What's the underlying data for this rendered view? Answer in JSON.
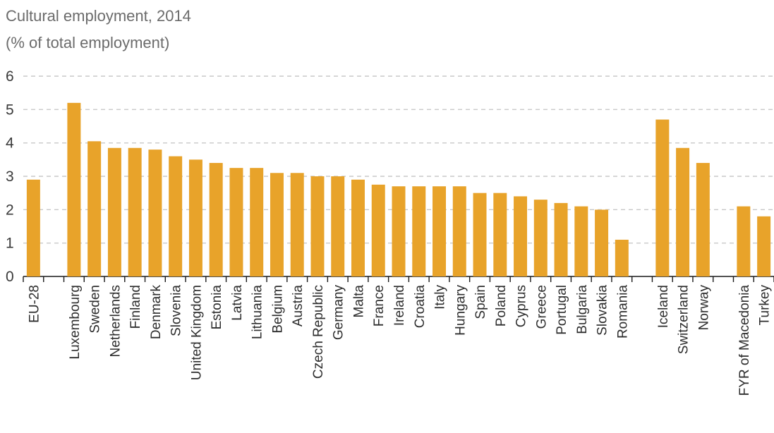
{
  "chart_data": {
    "type": "bar",
    "title": "Cultural employment, 2014",
    "subtitle": "(% of total employment)",
    "xlabel": "",
    "ylabel": "",
    "ylim": [
      0,
      6
    ],
    "yticks": [
      0,
      1,
      2,
      3,
      4,
      5,
      6
    ],
    "grid": true,
    "bar_color": "#e8a32a",
    "groups": [
      {
        "categories": [
          "EU-28"
        ],
        "values": [
          2.9
        ]
      },
      {
        "categories": [
          "Luxembourg",
          "Sweden",
          "Netherlands",
          "Finland",
          "Denmark",
          "Slovenia",
          "United Kingdom",
          "Estonia",
          "Latvia",
          "Lithuania",
          "Belgium",
          "Austria",
          "Czech Republic",
          "Germany",
          "Malta",
          "France",
          "Ireland",
          "Croatia",
          "Italy",
          "Hungary",
          "Spain",
          "Poland",
          "Cyprus",
          "Greece",
          "Portugal",
          "Bulgaria",
          "Slovakia",
          "Romania"
        ],
        "values": [
          5.2,
          4.05,
          3.85,
          3.85,
          3.8,
          3.6,
          3.5,
          3.4,
          3.25,
          3.25,
          3.1,
          3.1,
          3.0,
          3.0,
          2.9,
          2.75,
          2.7,
          2.7,
          2.7,
          2.7,
          2.5,
          2.5,
          2.4,
          2.3,
          2.2,
          2.1,
          2.0,
          1.1
        ]
      },
      {
        "categories": [
          "Iceland",
          "Switzerland",
          "Norway"
        ],
        "values": [
          4.7,
          3.85,
          3.4
        ]
      },
      {
        "categories": [
          "FYR of Macedonia",
          "Turkey"
        ],
        "values": [
          2.1,
          1.8
        ]
      }
    ]
  }
}
